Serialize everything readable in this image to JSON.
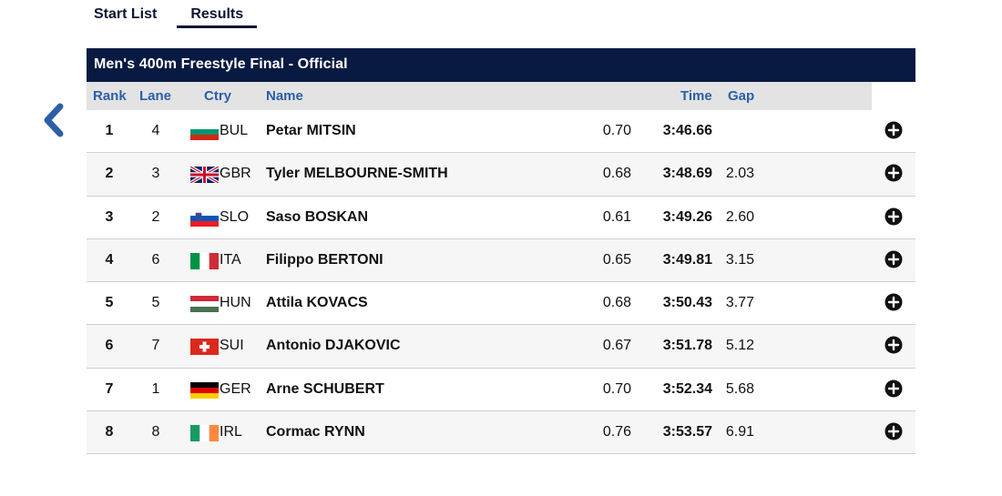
{
  "tabs": [
    {
      "label": "Start List",
      "active": false
    },
    {
      "label": "Results",
      "active": true
    }
  ],
  "event": {
    "title": "Men's 400m Freestyle Final  -  Official"
  },
  "columns": {
    "rank": "Rank",
    "lane": "Lane",
    "ctry": "Ctry",
    "name": "Name",
    "time": "Time",
    "gap": "Gap"
  },
  "rows": [
    {
      "rank": "1",
      "lane": "4",
      "ctry": "BUL",
      "name": "Petar MITSIN",
      "rt": "0.70",
      "time": "3:46.66",
      "gap": ""
    },
    {
      "rank": "2",
      "lane": "3",
      "ctry": "GBR",
      "name": "Tyler MELBOURNE-SMITH",
      "rt": "0.68",
      "time": "3:48.69",
      "gap": "2.03"
    },
    {
      "rank": "3",
      "lane": "2",
      "ctry": "SLO",
      "name": "Saso BOSKAN",
      "rt": "0.61",
      "time": "3:49.26",
      "gap": "2.60"
    },
    {
      "rank": "4",
      "lane": "6",
      "ctry": "ITA",
      "name": "Filippo BERTONI",
      "rt": "0.65",
      "time": "3:49.81",
      "gap": "3.15"
    },
    {
      "rank": "5",
      "lane": "5",
      "ctry": "HUN",
      "name": "Attila KOVACS",
      "rt": "0.68",
      "time": "3:50.43",
      "gap": "3.77"
    },
    {
      "rank": "6",
      "lane": "7",
      "ctry": "SUI",
      "name": "Antonio DJAKOVIC",
      "rt": "0.67",
      "time": "3:51.78",
      "gap": "5.12"
    },
    {
      "rank": "7",
      "lane": "1",
      "ctry": "GER",
      "name": "Arne SCHUBERT",
      "rt": "0.70",
      "time": "3:52.34",
      "gap": "5.68"
    },
    {
      "rank": "8",
      "lane": "8",
      "ctry": "IRL",
      "name": "Cormac RYNN",
      "rt": "0.76",
      "time": "3:53.57",
      "gap": "6.91"
    }
  ],
  "colors": {
    "navy": "#091a42",
    "header_blue": "#2c5fa8",
    "back_arrow": "#2c5fa8"
  },
  "icons": {
    "back": "chevron-left-icon",
    "expand": "plus-circle-icon"
  }
}
